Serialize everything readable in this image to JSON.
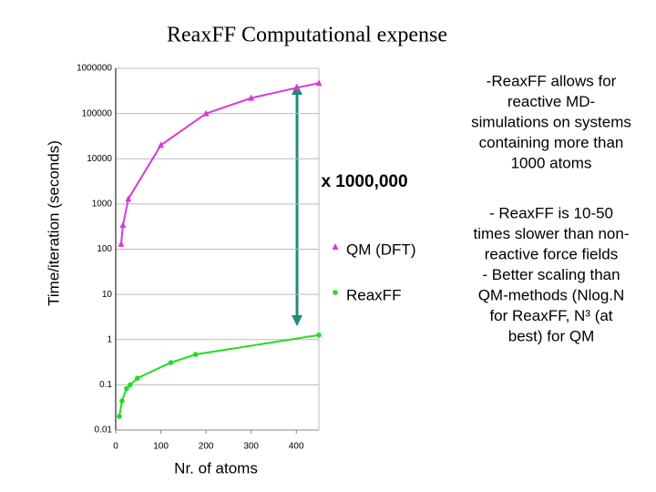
{
  "chart_data": {
    "type": "line",
    "title": "ReaxFF Computational expense",
    "x_label": "Nr. of atoms",
    "y_label": "Time/iteration (seconds)",
    "log_y": true,
    "grid": true,
    "xlim": [
      0,
      450
    ],
    "xticks": [
      0,
      100,
      200,
      300,
      400
    ],
    "ylim": [
      0.01,
      1000000
    ],
    "yticks": [
      1000000,
      100000,
      10000,
      1000,
      100,
      10,
      1,
      0.1,
      0.01
    ],
    "annotation": "x 1000,000",
    "series": [
      {
        "name": "QM (DFT)",
        "color": "#d63ad6",
        "marker": "triangle",
        "x": [
          12,
          16,
          28,
          100,
          200,
          300,
          400,
          450
        ],
        "values": [
          130,
          340,
          1300,
          20000,
          100000,
          220000,
          370000,
          470000
        ]
      },
      {
        "name": "ReaxFF",
        "color": "#22dd22",
        "marker": "circle",
        "x": [
          8,
          14,
          24,
          32,
          48,
          122,
          177,
          450
        ],
        "values": [
          0.02,
          0.044,
          0.083,
          0.1,
          0.14,
          0.31,
          0.47,
          1.26
        ]
      }
    ],
    "notes": [
      [
        "-ReaxFF allows for",
        "reactive MD-",
        "simulations on systems",
        "containing more than",
        "1000 atoms"
      ],
      [
        "- ReaxFF is 10-50",
        "times slower than non-",
        "reactive force fields",
        "- Better scaling than",
        "QM-methods (Nlog.N",
        "for ReaxFF, N³ (at",
        "best) for QM"
      ]
    ]
  }
}
